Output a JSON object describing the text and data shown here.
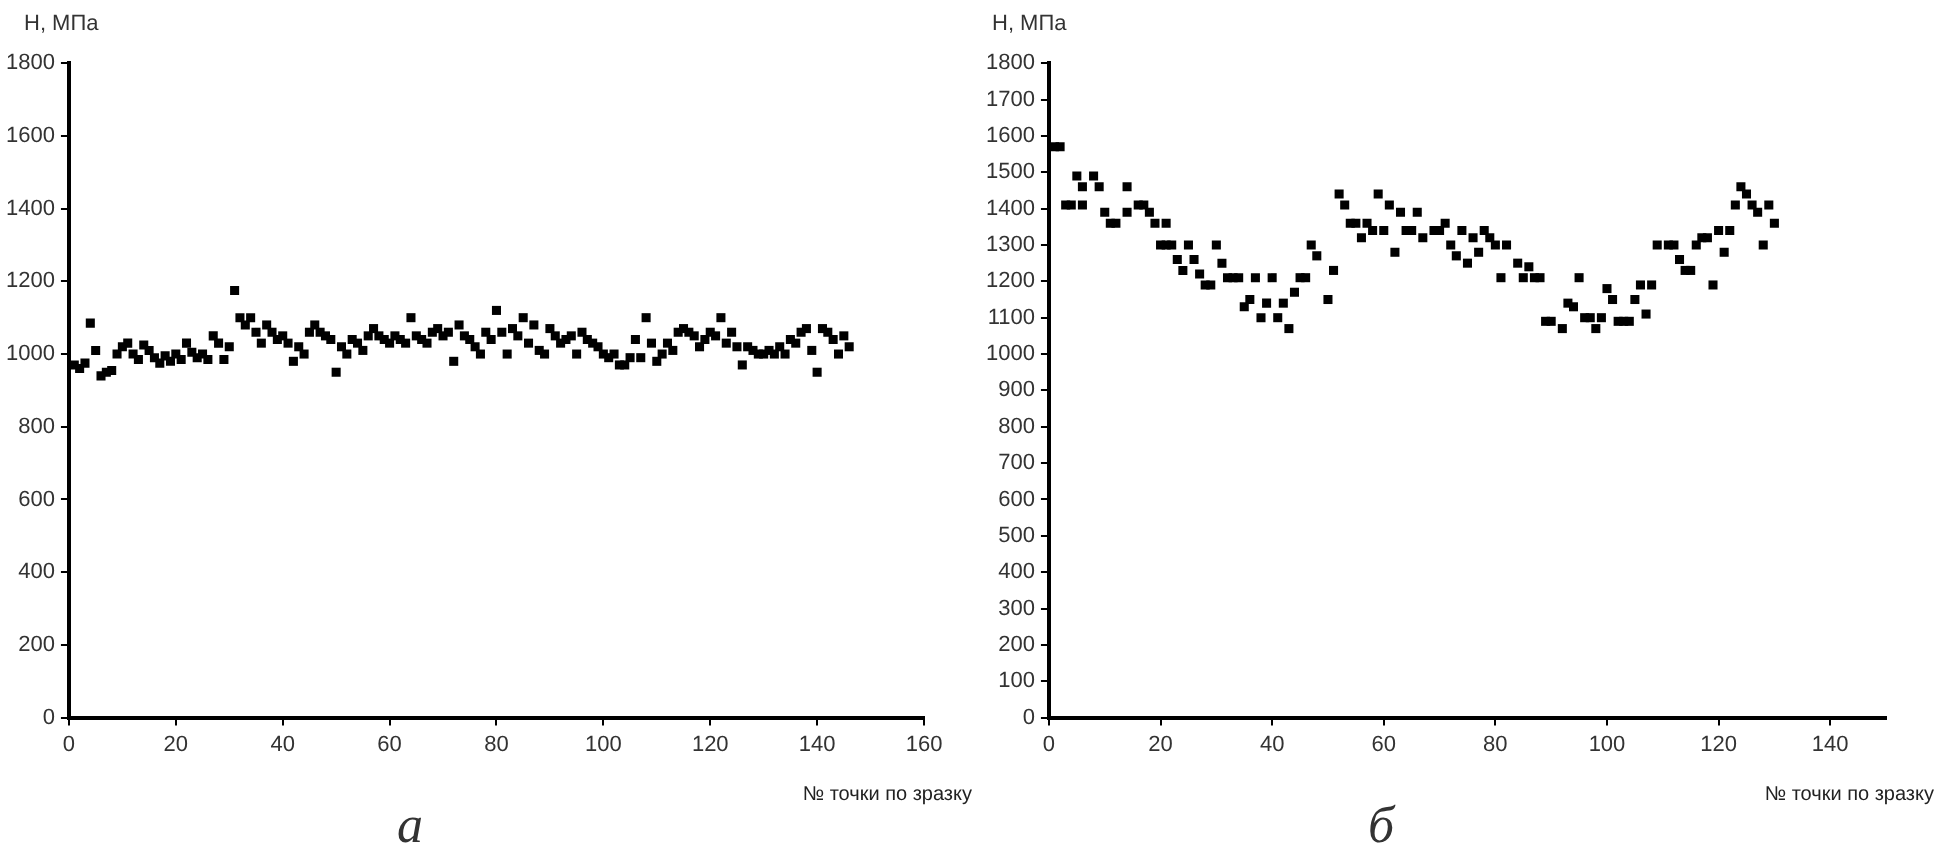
{
  "chart_data": [
    {
      "type": "scatter",
      "xlabel": "№ точки по зразку",
      "ylabel": "H, МПа",
      "annotations": [
        "а"
      ],
      "marker": "square",
      "grid": false,
      "xlim": [
        0,
        160
      ],
      "xticks": [
        0,
        20,
        40,
        60,
        80,
        100,
        120,
        140,
        160
      ],
      "ylim": [
        0,
        1800
      ],
      "yticks": [
        0,
        200,
        400,
        600,
        800,
        1000,
        1200,
        1400,
        1600,
        1800
      ],
      "x": [
        1,
        2,
        3,
        4,
        5,
        6,
        7,
        8,
        9,
        10,
        11,
        12,
        13,
        14,
        15,
        16,
        17,
        18,
        19,
        20,
        21,
        22,
        23,
        24,
        25,
        26,
        27,
        28,
        29,
        30,
        31,
        32,
        33,
        34,
        35,
        36,
        37,
        38,
        39,
        40,
        41,
        42,
        43,
        44,
        45,
        46,
        47,
        48,
        49,
        50,
        51,
        52,
        53,
        54,
        55,
        56,
        57,
        58,
        59,
        60,
        61,
        62,
        63,
        64,
        65,
        66,
        67,
        68,
        69,
        70,
        71,
        72,
        73,
        74,
        75,
        76,
        77,
        78,
        79,
        80,
        81,
        82,
        83,
        84,
        85,
        86,
        87,
        88,
        89,
        90,
        91,
        92,
        93,
        94,
        95,
        96,
        97,
        98,
        99,
        100,
        101,
        102,
        103,
        104,
        105,
        106,
        107,
        108,
        109,
        110,
        111,
        112,
        113,
        114,
        115,
        116,
        117,
        118,
        119,
        120,
        121,
        122,
        123,
        124,
        125,
        126,
        127,
        128,
        129,
        130,
        131,
        132,
        133,
        134,
        135,
        136,
        137,
        138,
        139,
        140,
        141,
        142,
        143,
        144,
        145,
        146
      ],
      "series": [
        {
          "color": "#000000",
          "values": [
            970,
            960,
            975,
            1085,
            1010,
            940,
            950,
            955,
            1000,
            1020,
            1030,
            1000,
            985,
            1025,
            1010,
            990,
            975,
            995,
            980,
            1000,
            985,
            1030,
            1005,
            990,
            1000,
            985,
            1050,
            1030,
            985,
            1020,
            1175,
            1100,
            1080,
            1100,
            1060,
            1030,
            1080,
            1060,
            1040,
            1050,
            1030,
            980,
            1020,
            1000,
            1060,
            1080,
            1060,
            1050,
            1040,
            950,
            1020,
            1000,
            1040,
            1030,
            1010,
            1050,
            1070,
            1050,
            1040,
            1030,
            1050,
            1040,
            1030,
            1100,
            1050,
            1040,
            1030,
            1060,
            1070,
            1050,
            1060,
            980,
            1080,
            1050,
            1040,
            1020,
            1000,
            1060,
            1040,
            1120,
            1060,
            1000,
            1070,
            1050,
            1100,
            1030,
            1080,
            1010,
            1000,
            1070,
            1050,
            1030,
            1040,
            1050,
            1000,
            1060,
            1040,
            1030,
            1020,
            1000,
            990,
            1000,
            970,
            970,
            990,
            1040,
            990,
            1100,
            1030,
            980,
            1000,
            1030,
            1010,
            1060,
            1070,
            1060,
            1050,
            1020,
            1040,
            1060,
            1050,
            1100,
            1030,
            1060,
            1020,
            970,
            1020,
            1010,
            1000,
            1000,
            1010,
            1000,
            1020,
            1000,
            1040,
            1030,
            1060,
            1070,
            1010,
            950,
            1070,
            1060,
            1040,
            1000,
            1050,
            1020
          ]
        }
      ]
    },
    {
      "type": "scatter",
      "xlabel": "№ точки по зразку",
      "ylabel": "H, МПа",
      "annotations": [
        "б"
      ],
      "marker": "square",
      "grid": false,
      "xlim": [
        0,
        150
      ],
      "xticks": [
        0,
        20,
        40,
        60,
        80,
        100,
        120,
        140
      ],
      "ylim": [
        0,
        1800
      ],
      "yticks": [
        0,
        100,
        200,
        300,
        400,
        500,
        600,
        700,
        800,
        900,
        1000,
        1100,
        1200,
        1300,
        1400,
        1500,
        1600,
        1700,
        1800
      ],
      "x": [
        1,
        2,
        3,
        4,
        5,
        6,
        6,
        8,
        9,
        10,
        11,
        12,
        14,
        14,
        16,
        17,
        18,
        19,
        20,
        21,
        21,
        22,
        23,
        24,
        25,
        26,
        27,
        28,
        29,
        30,
        31,
        32,
        33,
        34,
        35,
        36,
        37,
        38,
        39,
        40,
        41,
        42,
        43,
        44,
        45,
        46,
        47,
        48,
        50,
        51,
        52,
        53,
        54,
        55,
        56,
        57,
        58,
        59,
        60,
        61,
        62,
        63,
        64,
        65,
        66,
        67,
        69,
        70,
        71,
        72,
        73,
        74,
        75,
        76,
        77,
        78,
        79,
        80,
        81,
        82,
        84,
        85,
        86,
        87,
        88,
        89,
        90,
        92,
        93,
        94,
        95,
        96,
        97,
        98,
        99,
        100,
        101,
        102,
        103,
        104,
        105,
        106,
        107,
        108,
        109,
        111,
        112,
        113,
        114,
        115,
        116,
        117,
        118,
        119,
        120,
        121,
        122,
        123,
        124,
        125,
        126,
        127,
        128,
        129,
        130
      ],
      "series": [
        {
          "color": "#000000",
          "values": [
            1570,
            1570,
            1410,
            1410,
            1490,
            1410,
            1460,
            1490,
            1460,
            1390,
            1360,
            1360,
            1390,
            1460,
            1410,
            1410,
            1390,
            1360,
            1300,
            1300,
            1360,
            1300,
            1260,
            1230,
            1300,
            1260,
            1220,
            1190,
            1190,
            1300,
            1250,
            1210,
            1210,
            1210,
            1130,
            1150,
            1210,
            1100,
            1140,
            1210,
            1100,
            1140,
            1070,
            1170,
            1210,
            1210,
            1300,
            1270,
            1150,
            1230,
            1440,
            1410,
            1360,
            1360,
            1320,
            1360,
            1340,
            1440,
            1340,
            1410,
            1280,
            1390,
            1340,
            1340,
            1390,
            1320,
            1340,
            1340,
            1360,
            1300,
            1270,
            1340,
            1250,
            1320,
            1280,
            1340,
            1320,
            1300,
            1210,
            1300,
            1250,
            1210,
            1240,
            1210,
            1210,
            1090,
            1090,
            1070,
            1140,
            1130,
            1210,
            1100,
            1100,
            1070,
            1100,
            1180,
            1150,
            1090,
            1090,
            1090,
            1150,
            1190,
            1110,
            1190,
            1300,
            1300,
            1300,
            1260,
            1230,
            1230,
            1300,
            1320,
            1320,
            1190,
            1340,
            1280,
            1340,
            1410,
            1460,
            1440,
            1410,
            1390,
            1300,
            1410,
            1360
          ]
        }
      ]
    }
  ]
}
